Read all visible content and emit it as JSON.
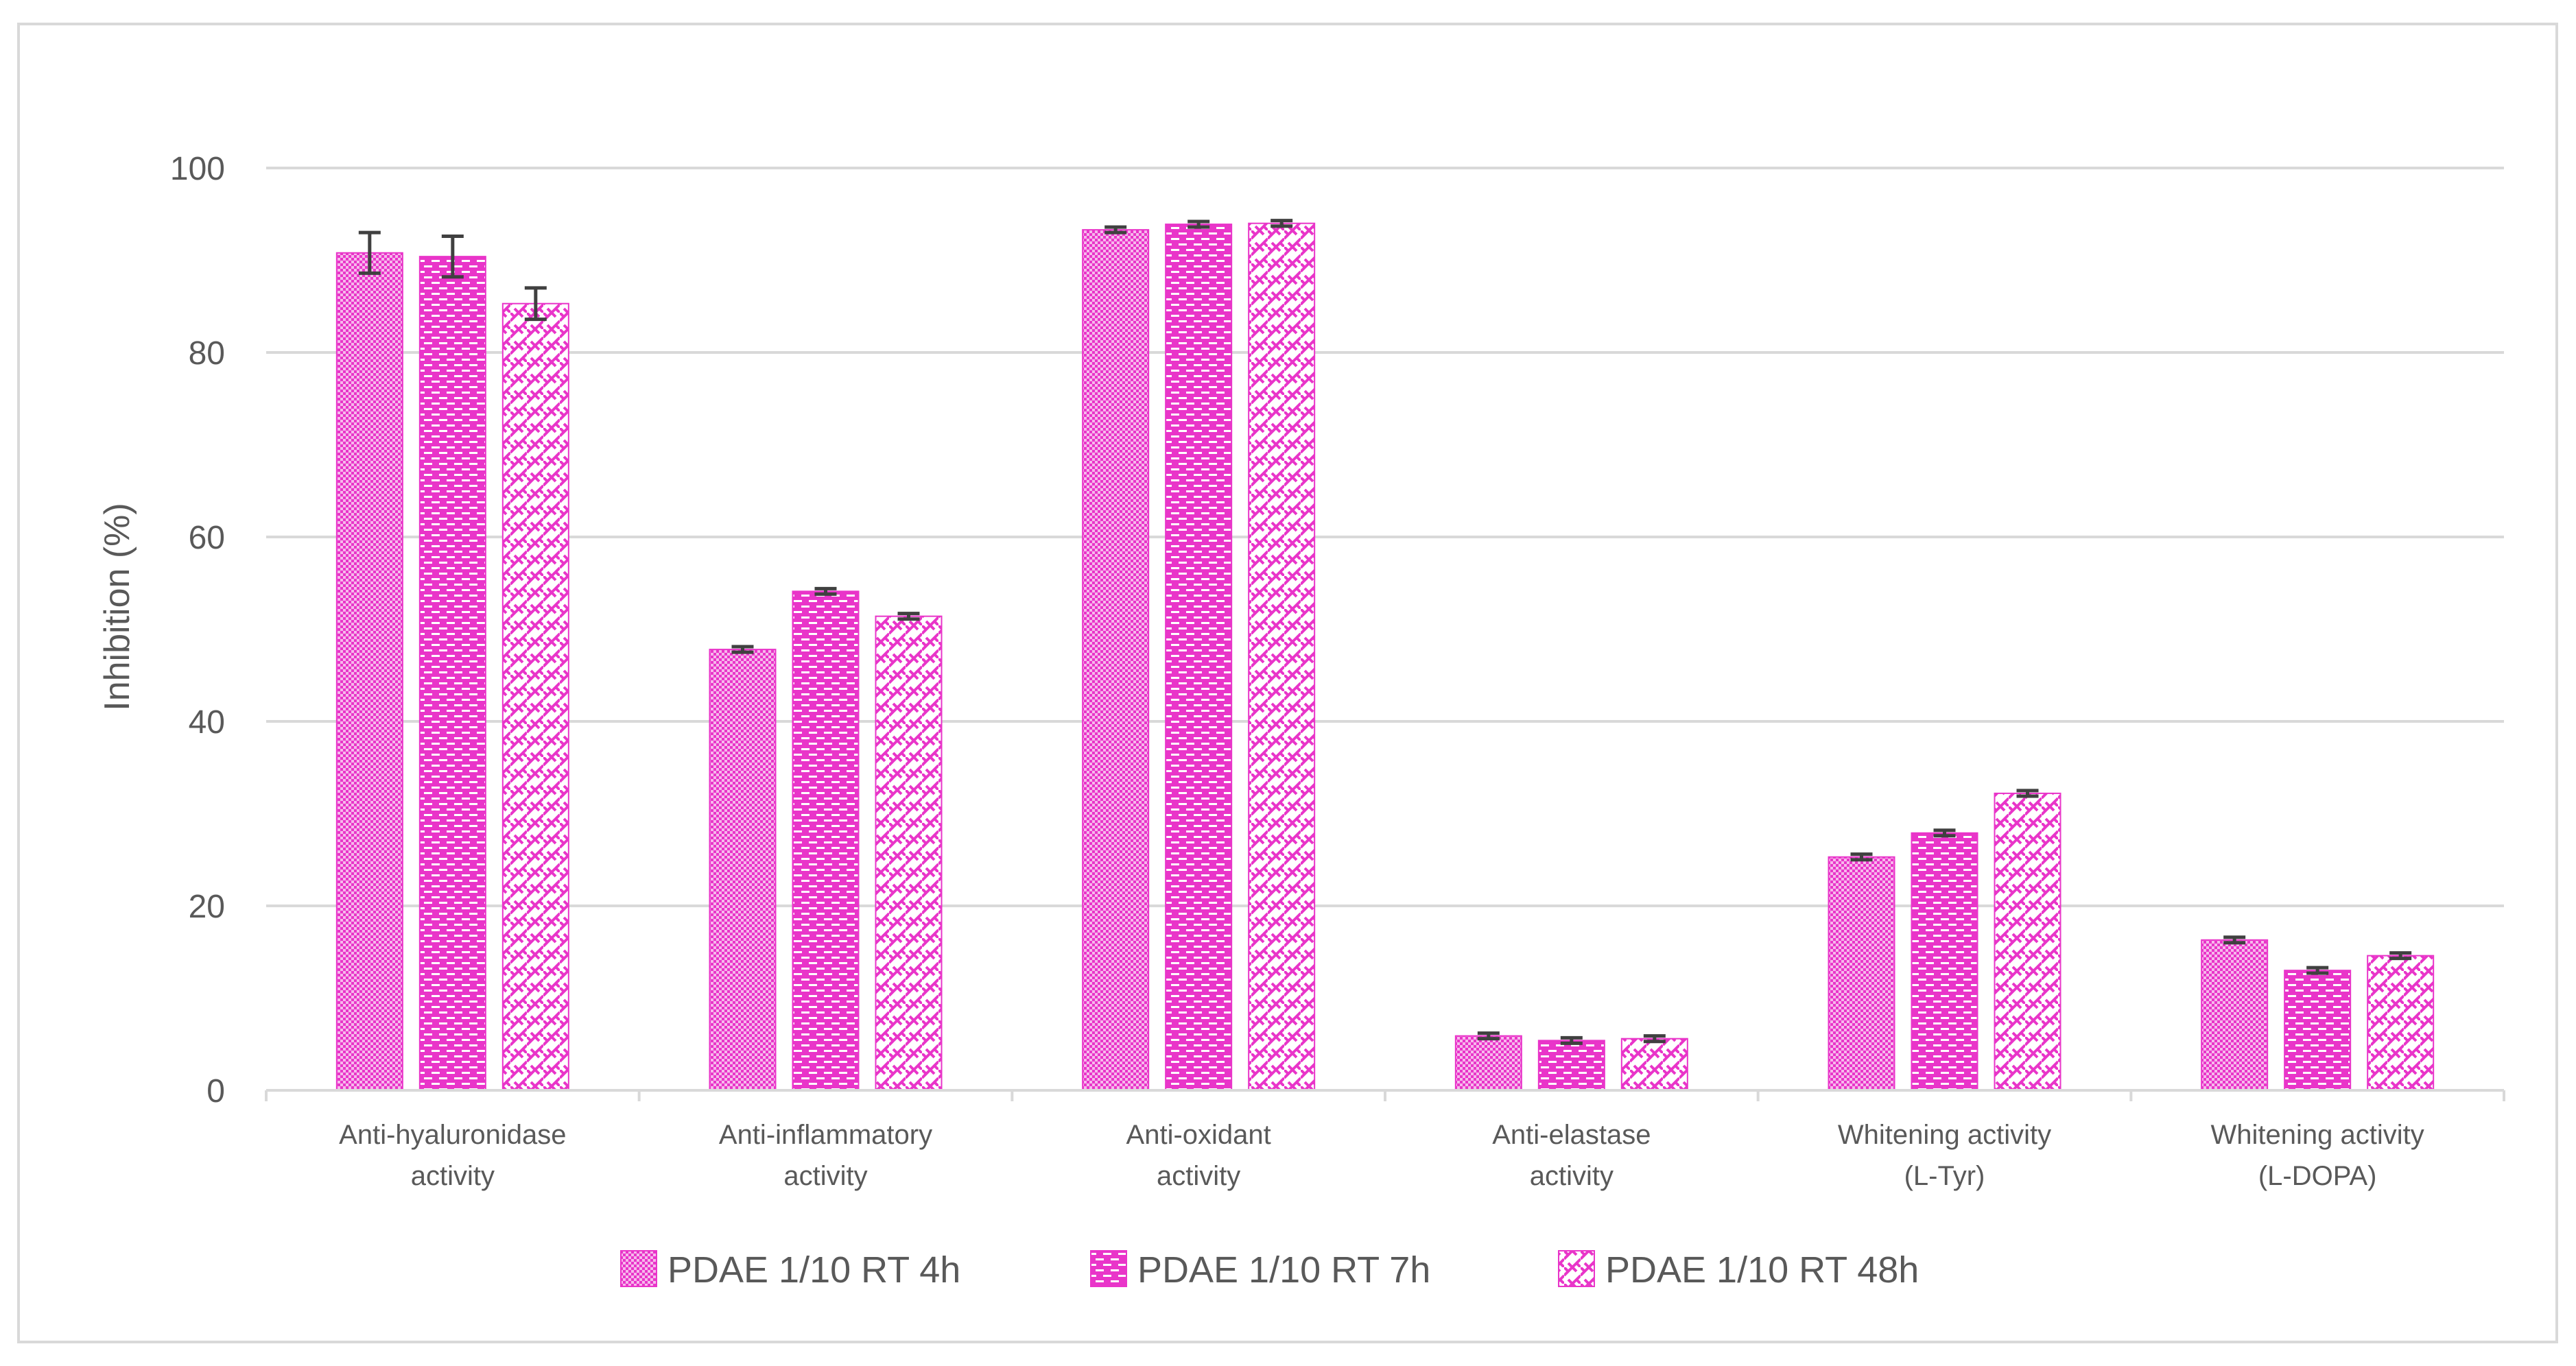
{
  "chart_data": {
    "type": "bar",
    "ylabel": "Inhibition (%)",
    "ylim": [
      0,
      100
    ],
    "y_ticks": [
      "0",
      "20",
      "40",
      "60",
      "80",
      "100"
    ],
    "grid": true,
    "legend_position": "bottom",
    "categories": [
      [
        "Anti-hyaluronidase",
        "activity"
      ],
      [
        "Anti-inflammatory",
        "activity"
      ],
      [
        "Anti-oxidant",
        "activity"
      ],
      [
        "Anti-elastase",
        "activity"
      ],
      [
        "Whitening activity",
        "(L-Tyr)"
      ],
      [
        "Whitening activity",
        "(L-DOPA)"
      ]
    ],
    "series": [
      {
        "name": "PDAE 1/10 RT 4h",
        "color": "#e935c9",
        "pattern": "checker",
        "values": [
          90.8,
          47.8,
          93.3,
          5.9,
          25.3,
          16.3
        ],
        "errors": [
          2.2,
          0.3,
          0.3,
          0.3,
          0.3,
          0.3
        ]
      },
      {
        "name": "PDAE 1/10 RT 7h",
        "color": "#e935c9",
        "pattern": "brick",
        "values": [
          90.4,
          54.1,
          93.9,
          5.4,
          27.9,
          13.0
        ],
        "errors": [
          2.2,
          0.3,
          0.3,
          0.3,
          0.3,
          0.3
        ]
      },
      {
        "name": "PDAE 1/10 RT 48h",
        "color": "#e935c9",
        "pattern": "weave",
        "values": [
          85.3,
          51.4,
          94.0,
          5.6,
          32.2,
          14.6
        ],
        "errors": [
          1.7,
          0.3,
          0.3,
          0.3,
          0.3,
          0.3
        ]
      }
    ]
  }
}
